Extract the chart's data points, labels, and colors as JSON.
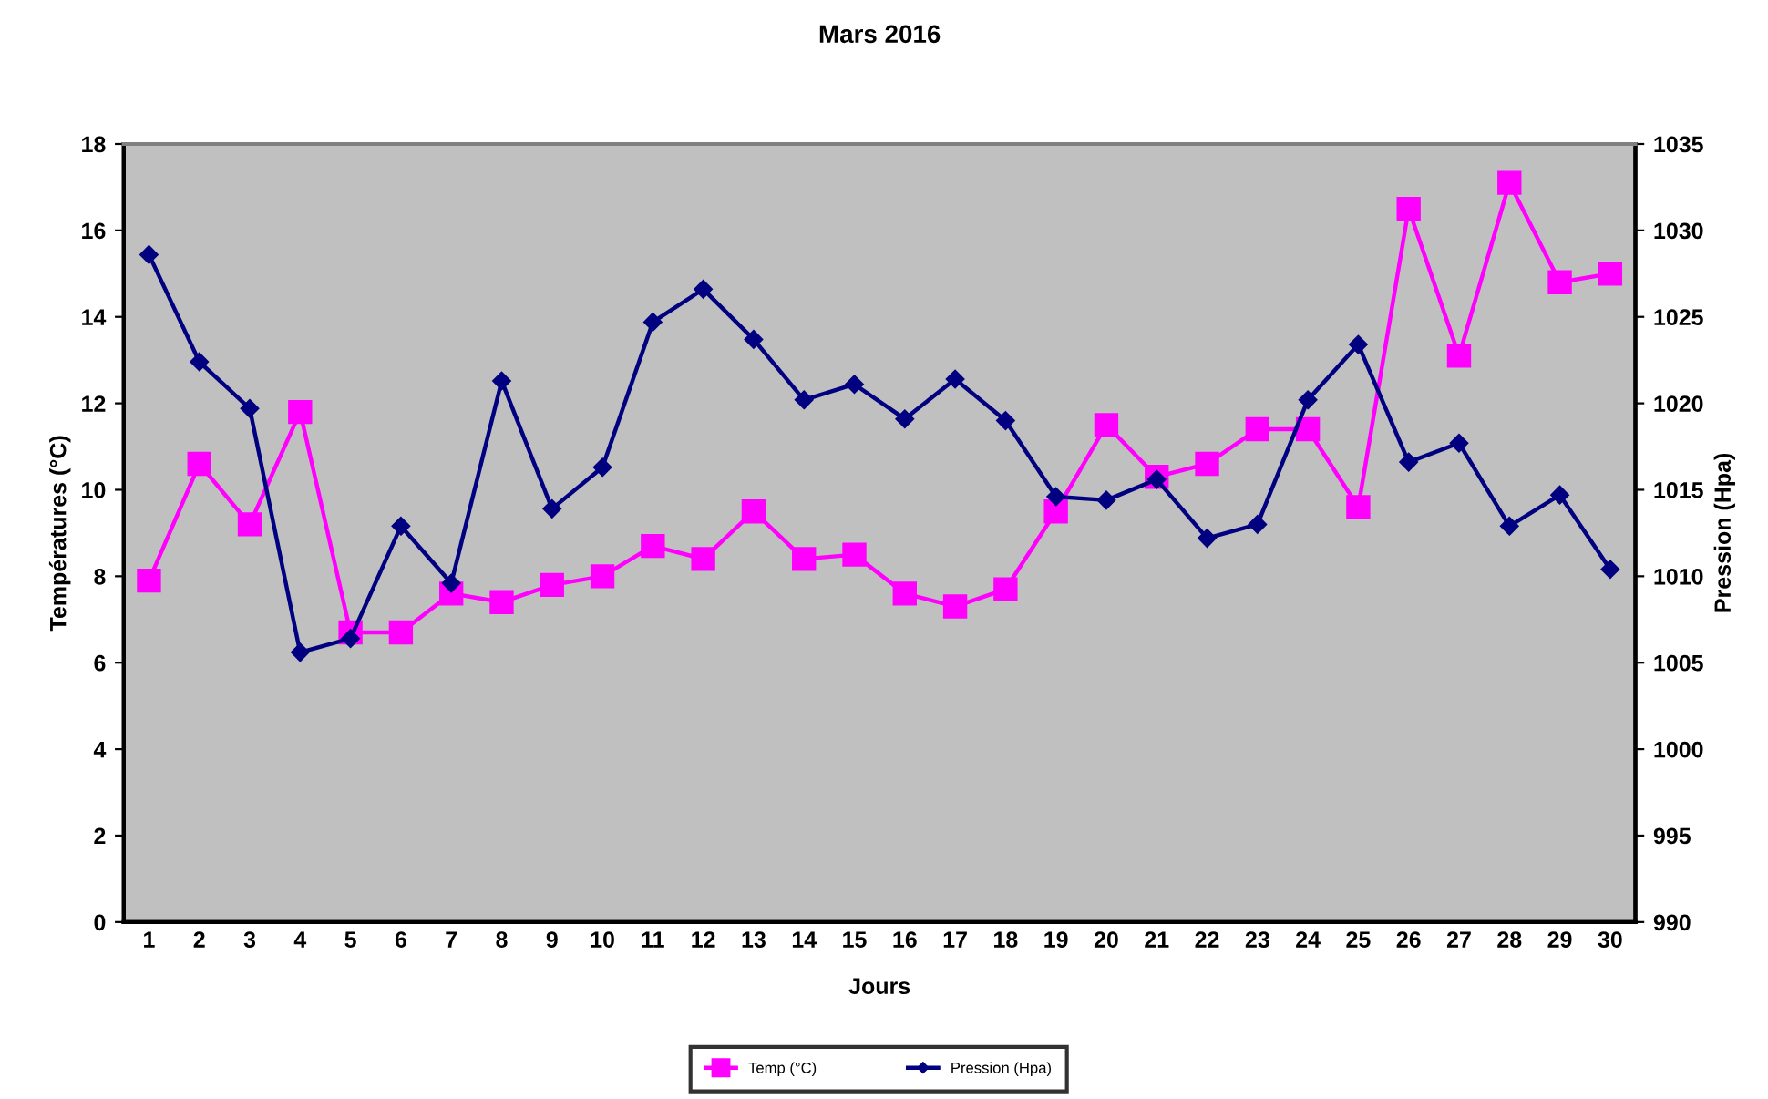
{
  "chart_data": {
    "type": "line",
    "title": "Mars 2016",
    "xlabel": "Jours",
    "ylabel": "Températures (°C)",
    "y2label": "Pression (Hpa)",
    "categories": [
      "1",
      "2",
      "3",
      "4",
      "5",
      "6",
      "7",
      "8",
      "9",
      "10",
      "11",
      "12",
      "13",
      "14",
      "15",
      "16",
      "17",
      "18",
      "19",
      "20",
      "21",
      "22",
      "23",
      "24",
      "25",
      "26",
      "27",
      "28",
      "29",
      "30"
    ],
    "series": [
      {
        "name": "Temp (°C)",
        "color": "#ff00ff",
        "marker": "square",
        "values": [
          7.9,
          10.6,
          9.2,
          11.8,
          6.7,
          6.7,
          7.6,
          7.4,
          7.8,
          8.0,
          8.7,
          8.4,
          9.5,
          8.4,
          8.5,
          7.6,
          7.3,
          7.7,
          9.5,
          11.5,
          10.3,
          10.6,
          11.4,
          11.4,
          9.6,
          16.5,
          13.1,
          17.1,
          14.8,
          15.0
        ]
      },
      {
        "name": "Pression (Hpa)",
        "color": "#000080",
        "marker": "diamond",
        "axis": "y2",
        "values": [
          1028.6,
          1022.4,
          1019.7,
          1005.6,
          1006.4,
          1012.9,
          1009.6,
          1021.3,
          1013.9,
          1016.3,
          1024.7,
          1026.6,
          1023.7,
          1020.2,
          1021.1,
          1019.1,
          1021.4,
          1019.0,
          1014.6,
          1014.4,
          1015.6,
          1012.2,
          1013.0,
          1020.2,
          1023.4,
          1016.6,
          1017.7,
          1012.9,
          1014.7,
          1010.4
        ]
      }
    ],
    "ylim": [
      0,
      18
    ],
    "yticks": [
      0,
      2,
      4,
      6,
      8,
      10,
      12,
      14,
      16,
      18
    ],
    "y2lim": [
      990,
      1035
    ],
    "y2ticks": [
      990,
      995,
      1000,
      1005,
      1010,
      1015,
      1020,
      1025,
      1030,
      1035
    ],
    "grid": false,
    "legend": "bottom",
    "line_style": "solid"
  }
}
